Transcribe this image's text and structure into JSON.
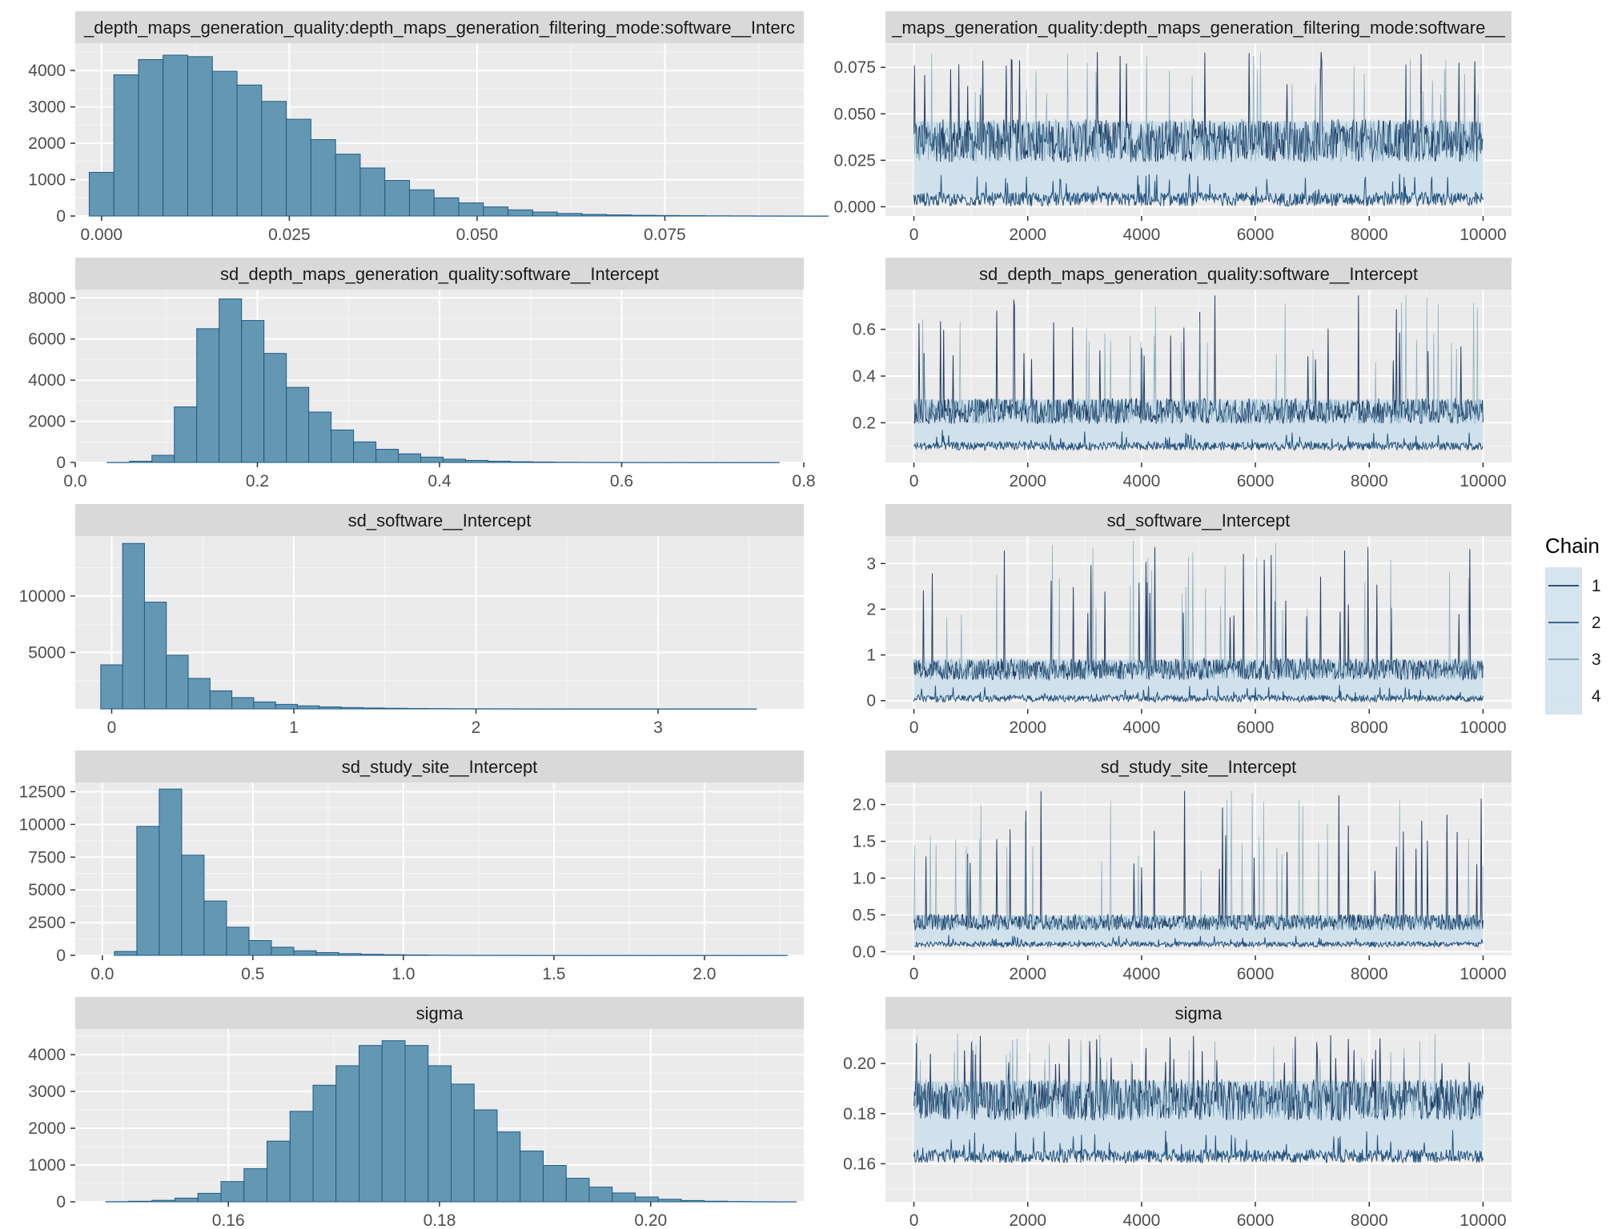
{
  "colors": {
    "panel_bg": "#ebebeb",
    "strip_bg": "#d9d9d9",
    "grid": "#ffffff",
    "hist_fill": "#6497b1",
    "hist_stroke": "#1d5b8a",
    "band_fill": "#d1e1ec",
    "chain_colors": [
      "#011f4b",
      "#03396c",
      "#6497b1",
      "#d1e1ec"
    ]
  },
  "legend": {
    "title": "Chain",
    "items": [
      "1",
      "2",
      "3",
      "4"
    ]
  },
  "chart_data": [
    {
      "type": "bar",
      "title": "_depth_maps_generation_quality:depth_maps_generation_filtering_mode:software__Interc",
      "xlim": [
        -0.0035,
        0.0935
      ],
      "ylim": [
        0,
        4750
      ],
      "x_ticks": [
        0,
        0.025,
        0.05,
        0.075
      ],
      "x_tick_labels": [
        "0.000",
        "0.025",
        "0.050",
        "0.075"
      ],
      "y_ticks": [
        0,
        1000,
        2000,
        3000,
        4000
      ],
      "y_tick_labels": [
        "0",
        "1000",
        "2000",
        "3000",
        "4000"
      ],
      "bin_start": -0.00164,
      "bin_width": 0.00328,
      "values": [
        1200,
        3880,
        4300,
        4420,
        4380,
        3980,
        3600,
        3150,
        2660,
        2100,
        1700,
        1320,
        980,
        720,
        500,
        360,
        250,
        170,
        110,
        70,
        45,
        30,
        20,
        14,
        10,
        7,
        5,
        3,
        2,
        1
      ]
    },
    {
      "type": "line",
      "title": "_maps_generation_quality:depth_maps_generation_filtering_mode:software__",
      "xlim": [
        -500,
        10500
      ],
      "ylim": [
        -0.005,
        0.088
      ],
      "x_ticks": [
        0,
        2000,
        4000,
        6000,
        8000,
        10000
      ],
      "x_tick_labels": [
        "0",
        "2000",
        "4000",
        "6000",
        "8000",
        "10000"
      ],
      "y_ticks": [
        0,
        0.025,
        0.05,
        0.075
      ],
      "y_tick_labels": [
        "0.000",
        "0.025",
        "0.050",
        "0.075"
      ],
      "iterations": [
        0,
        10000
      ],
      "band": {
        "low": 0.004,
        "high": 0.046,
        "spike_max": 0.084
      },
      "series": [
        "1",
        "2",
        "3",
        "4"
      ]
    },
    {
      "type": "bar",
      "title": "sd_depth_maps_generation_quality:software__Intercept",
      "xlim": [
        0,
        0.8
      ],
      "ylim": [
        0,
        8400
      ],
      "x_ticks": [
        0,
        0.2,
        0.4,
        0.6,
        0.8
      ],
      "x_tick_labels": [
        "0.0",
        "0.2",
        "0.4",
        "0.6",
        "0.8"
      ],
      "y_ticks": [
        0,
        2000,
        4000,
        6000,
        8000
      ],
      "y_tick_labels": [
        "0",
        "2000",
        "4000",
        "6000",
        "8000"
      ],
      "bin_start": 0.035,
      "bin_width": 0.0246,
      "values": [
        5,
        60,
        350,
        2700,
        6500,
        7950,
        6900,
        5300,
        3650,
        2450,
        1580,
        1000,
        640,
        420,
        260,
        160,
        100,
        60,
        36,
        22,
        14,
        9,
        6,
        4,
        3,
        2,
        1,
        1,
        1,
        1
      ]
    },
    {
      "type": "line",
      "title": "sd_depth_maps_generation_quality:software__Intercept",
      "xlim": [
        -500,
        10500
      ],
      "ylim": [
        0.03,
        0.77
      ],
      "x_ticks": [
        0,
        2000,
        4000,
        6000,
        8000,
        10000
      ],
      "x_tick_labels": [
        "0",
        "2000",
        "4000",
        "6000",
        "8000",
        "10000"
      ],
      "y_ticks": [
        0.2,
        0.4,
        0.6
      ],
      "y_tick_labels": [
        "0.2",
        "0.4",
        "0.6"
      ],
      "iterations": [
        0,
        10000
      ],
      "band": {
        "low": 0.1,
        "high": 0.3,
        "spike_max": 0.75
      },
      "series": [
        "1",
        "2",
        "3",
        "4"
      ]
    },
    {
      "type": "bar",
      "title": "sd_software__Intercept",
      "xlim": [
        -0.2,
        3.8
      ],
      "ylim": [
        0,
        15300
      ],
      "x_ticks": [
        0,
        1,
        2,
        3
      ],
      "x_tick_labels": [
        "0",
        "1",
        "2",
        "3"
      ],
      "y_ticks": [
        5000,
        10000
      ],
      "y_tick_labels": [
        "5000",
        "10000"
      ],
      "bin_start": -0.06,
      "bin_width": 0.12,
      "values": [
        3900,
        14650,
        9450,
        4750,
        2700,
        1600,
        1000,
        620,
        400,
        270,
        180,
        120,
        80,
        55,
        38,
        26,
        18,
        12,
        9,
        6,
        4,
        3,
        2,
        2,
        1,
        1,
        1,
        1,
        1,
        1
      ]
    },
    {
      "type": "line",
      "title": "sd_software__Intercept",
      "xlim": [
        -500,
        10500
      ],
      "ylim": [
        -0.18,
        3.6
      ],
      "x_ticks": [
        0,
        2000,
        4000,
        6000,
        8000,
        10000
      ],
      "x_tick_labels": [
        "0",
        "2000",
        "4000",
        "6000",
        "8000",
        "10000"
      ],
      "y_ticks": [
        0,
        1,
        2,
        3
      ],
      "y_tick_labels": [
        "0",
        "1",
        "2",
        "3"
      ],
      "iterations": [
        0,
        10000
      ],
      "band": {
        "low": 0.05,
        "high": 0.9,
        "spike_max": 3.5
      },
      "series": [
        "1",
        "2",
        "3",
        "4"
      ]
    },
    {
      "type": "bar",
      "title": "sd_study_site__Intercept",
      "xlim": [
        -0.09,
        2.33
      ],
      "ylim": [
        0,
        13200
      ],
      "x_ticks": [
        0,
        0.5,
        1,
        1.5,
        2
      ],
      "x_tick_labels": [
        "0.0",
        "0.5",
        "1.0",
        "1.5",
        "2.0"
      ],
      "y_ticks": [
        0,
        2500,
        5000,
        7500,
        10000,
        12500
      ],
      "y_tick_labels": [
        "0",
        "2500",
        "5000",
        "7500",
        "10000",
        "12500"
      ],
      "bin_start": 0.04,
      "bin_width": 0.0745,
      "values": [
        300,
        9850,
        12700,
        7650,
        4150,
        2150,
        1130,
        620,
        350,
        210,
        130,
        80,
        50,
        32,
        20,
        13,
        9,
        6,
        4,
        3,
        2,
        2,
        1,
        1,
        1,
        1,
        1,
        1,
        1,
        1
      ]
    },
    {
      "type": "line",
      "title": "sd_study_site__Intercept",
      "xlim": [
        -500,
        10500
      ],
      "ylim": [
        -0.05,
        2.3
      ],
      "x_ticks": [
        0,
        2000,
        4000,
        6000,
        8000,
        10000
      ],
      "x_tick_labels": [
        "0",
        "2000",
        "4000",
        "6000",
        "8000",
        "10000"
      ],
      "y_ticks": [
        0,
        0.5,
        1,
        1.5,
        2
      ],
      "y_tick_labels": [
        "0.0",
        "0.5",
        "1.0",
        "1.5",
        "2.0"
      ],
      "iterations": [
        0,
        10000
      ],
      "band": {
        "low": 0.1,
        "high": 0.5,
        "spike_max": 2.2
      },
      "series": [
        "1",
        "2",
        "3",
        "4"
      ]
    },
    {
      "type": "bar",
      "title": "sigma",
      "xlim": [
        0.1455,
        0.2145
      ],
      "ylim": [
        0,
        4700
      ],
      "x_ticks": [
        0.16,
        0.18,
        0.2
      ],
      "x_tick_labels": [
        "0.16",
        "0.18",
        "0.20"
      ],
      "y_ticks": [
        0,
        1000,
        2000,
        3000,
        4000
      ],
      "y_tick_labels": [
        "0",
        "1000",
        "2000",
        "3000",
        "4000"
      ],
      "bin_start": 0.1484,
      "bin_width": 0.00218,
      "values": [
        5,
        15,
        40,
        100,
        230,
        550,
        900,
        1650,
        2460,
        3170,
        3700,
        4250,
        4380,
        4250,
        3700,
        3200,
        2500,
        1900,
        1380,
        990,
        640,
        400,
        240,
        130,
        70,
        35,
        16,
        8,
        4,
        2
      ]
    },
    {
      "type": "line",
      "title": "sigma",
      "xlim": [
        -500,
        10500
      ],
      "ylim": [
        0.1448,
        0.2138
      ],
      "x_ticks": [
        0,
        2000,
        4000,
        6000,
        8000,
        10000
      ],
      "x_tick_labels": [
        "0",
        "2000",
        "4000",
        "6000",
        "8000",
        "10000"
      ],
      "y_ticks": [
        0.16,
        0.18,
        0.2
      ],
      "y_tick_labels": [
        "0.16",
        "0.18",
        "0.20"
      ],
      "iterations": [
        0,
        10000
      ],
      "band": {
        "low": 0.163,
        "high": 0.193,
        "spike_max": 0.212
      },
      "series": [
        "1",
        "2",
        "3",
        "4"
      ]
    }
  ]
}
